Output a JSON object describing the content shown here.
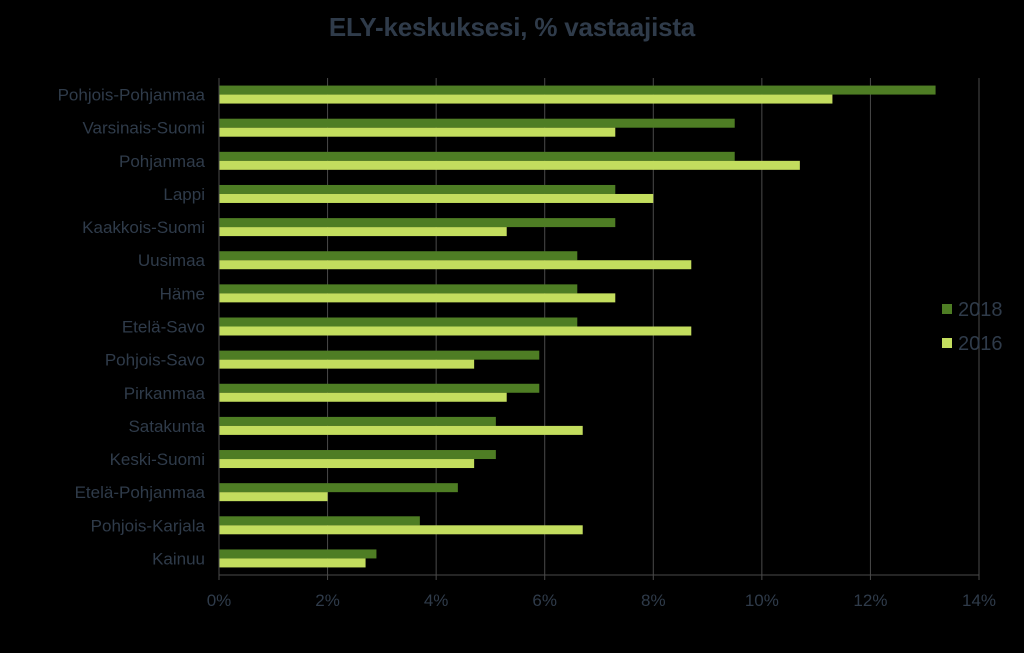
{
  "chart_data": {
    "type": "bar",
    "orientation": "horizontal",
    "title": "ELY-keskuksesi, % vastaajista",
    "xlabel": "",
    "ylabel": "",
    "categories": [
      "Pohjois-Pohjanmaa",
      "Varsinais-Suomi",
      "Pohjanmaa",
      "Lappi",
      "Kaakkois-Suomi",
      "Uusimaa",
      "Häme",
      "Etelä-Savo",
      "Pohjois-Savo",
      "Pirkanmaa",
      "Satakunta",
      "Keski-Suomi",
      "Etelä-Pohjanmaa",
      "Pohjois-Karjala",
      "Kainuu"
    ],
    "series": [
      {
        "name": "2018",
        "color": "#4e7d24",
        "values": [
          13.2,
          9.5,
          9.5,
          7.3,
          7.3,
          6.6,
          6.6,
          6.6,
          5.9,
          5.9,
          5.1,
          5.1,
          4.4,
          3.7,
          2.9
        ]
      },
      {
        "name": "2016",
        "color": "#c3dd5e",
        "values": [
          11.3,
          7.3,
          10.7,
          8.0,
          5.3,
          8.7,
          7.3,
          8.7,
          4.7,
          5.3,
          6.7,
          4.7,
          2.0,
          6.7,
          2.7
        ]
      }
    ],
    "xlim": [
      0,
      14
    ],
    "ticks": [
      "0%",
      "2%",
      "4%",
      "6%",
      "8%",
      "10%",
      "12%",
      "14%"
    ],
    "tick_values": [
      0,
      2,
      4,
      6,
      8,
      10,
      12,
      14
    ],
    "grid": true,
    "gridline_color": "#4a4a4a",
    "text_color": "#2f3b4a",
    "legend": "right"
  }
}
